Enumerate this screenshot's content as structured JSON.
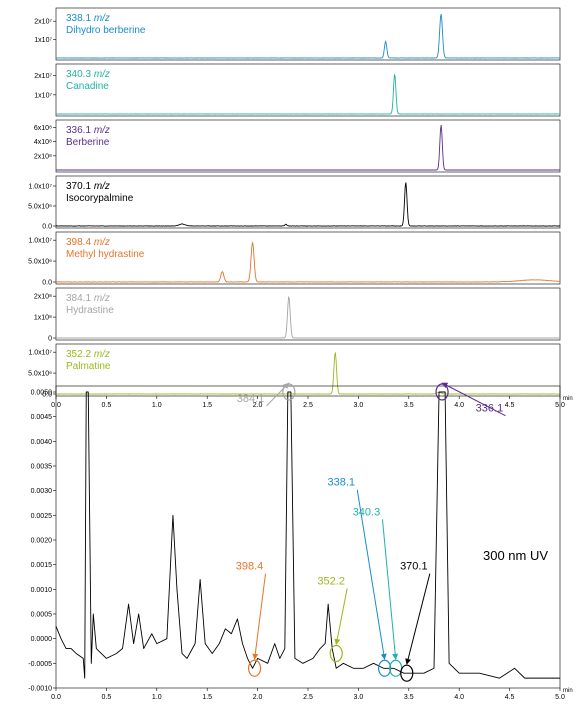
{
  "chart_data": [
    {
      "type": "line",
      "panel": "ion-traces",
      "x_unit": "min",
      "xlim": [
        0.0,
        5.0
      ],
      "x_ticks": [
        "0.0",
        "0.5",
        "1.0",
        "1.5",
        "2.0",
        "2.5",
        "3.0",
        "3.5",
        "4.0",
        "4.5",
        "5.0"
      ],
      "series": [
        {
          "name": "Dihydro berberine",
          "mz": "338.1",
          "unit": "m/z",
          "color": "#1a8ccc",
          "y_ticks": [
            {
              "value": 20000000,
              "label": "2x10⁷"
            },
            {
              "value": 10000000,
              "label": "1x10⁷"
            }
          ],
          "ylim": [
            0,
            25000000
          ],
          "noise": 0.012,
          "peaks": [
            {
              "x": 3.27,
              "height": 9000000,
              "width": 0.012
            },
            {
              "x": 3.82,
              "height": 24000000,
              "width": 0.014
            }
          ]
        },
        {
          "name": "Canadine",
          "mz": "340.3",
          "unit": "m/z",
          "color": "#1fb3a3",
          "y_ticks": [
            {
              "value": 20000000,
              "label": "2x10⁷"
            },
            {
              "value": 10000000,
              "label": "1x10⁷"
            }
          ],
          "ylim": [
            0,
            24000000
          ],
          "noise": 0.01,
          "peaks": [
            {
              "x": 3.36,
              "height": 21000000,
              "width": 0.012
            }
          ]
        },
        {
          "name": "Berberine",
          "mz": "336.1",
          "unit": "m/z",
          "color": "#5b2d90",
          "y_ticks": [
            {
              "value": 600000000,
              "label": "6x10⁸"
            },
            {
              "value": 400000000,
              "label": "4x10⁸"
            },
            {
              "value": 200000000,
              "label": "2x10⁸"
            }
          ],
          "ylim": [
            0,
            650000000
          ],
          "noise": 0.0,
          "peaks": [
            {
              "x": 3.82,
              "height": 640000000,
              "width": 0.012
            }
          ]
        },
        {
          "name": "Isocorypalmine",
          "mz": "370.1",
          "unit": "m/z",
          "color": "#000000",
          "y_ticks": [
            {
              "value": 10000000,
              "label": "1.0x10⁷"
            },
            {
              "value": 5000000,
              "label": "5.0x10⁶"
            },
            {
              "value": 0,
              "label": "0.0"
            }
          ],
          "ylim": [
            0,
            11500000
          ],
          "noise": 0.03,
          "peaks": [
            {
              "x": 1.25,
              "height": 500000,
              "width": 0.03
            },
            {
              "x": 2.28,
              "height": 450000,
              "width": 0.01
            },
            {
              "x": 3.47,
              "height": 11000000,
              "width": 0.012
            }
          ]
        },
        {
          "name": "Methyl hydrastine",
          "mz": "398.4",
          "unit": "m/z",
          "color": "#e8732a",
          "y_ticks": [
            {
              "value": 10000000,
              "label": "1.0x10⁷"
            },
            {
              "value": 5000000,
              "label": "5.0x10⁶"
            },
            {
              "value": 0,
              "label": "0.0"
            }
          ],
          "ylim": [
            0,
            11000000
          ],
          "noise": 0.03,
          "peaks": [
            {
              "x": 1.65,
              "height": 2500000,
              "width": 0.015
            },
            {
              "x": 1.95,
              "height": 9500000,
              "width": 0.015
            },
            {
              "x": 4.75,
              "height": 500000,
              "width": 0.15
            }
          ]
        },
        {
          "name": "Hydrastine",
          "mz": "384.1",
          "unit": "m/z",
          "color": "#a5a5a5",
          "y_ticks": [
            {
              "value": 200000000,
              "label": "2x10⁸"
            },
            {
              "value": 100000000,
              "label": "1x10⁸"
            },
            {
              "value": 0,
              "label": "0"
            }
          ],
          "ylim": [
            0,
            220000000
          ],
          "noise": 0.0,
          "peaks": [
            {
              "x": 2.31,
              "height": 200000000,
              "width": 0.013
            }
          ]
        },
        {
          "name": "Palmatine",
          "mz": "352.2",
          "unit": "m/z",
          "color": "#9ab81e",
          "y_ticks": [
            {
              "value": 10000000,
              "label": "1.0x10⁷"
            },
            {
              "value": 5000000,
              "label": "5.0x10⁶"
            },
            {
              "value": 0,
              "label": "0.0"
            }
          ],
          "ylim": [
            0,
            11000000
          ],
          "noise": 0.02,
          "peaks": [
            {
              "x": 2.77,
              "height": 10000000,
              "width": 0.013
            },
            {
              "x": 3.8,
              "height": 400000,
              "width": 0.02
            }
          ]
        }
      ]
    },
    {
      "type": "line",
      "panel": "uv-trace",
      "annotation": "300 nm UV",
      "x_unit": "min",
      "xlim": [
        0.0,
        5.0
      ],
      "x_ticks": [
        "0.0",
        "0.5",
        "1.0",
        "1.5",
        "2.0",
        "2.5",
        "3.0",
        "3.5",
        "4.0",
        "4.5",
        "5.0"
      ],
      "ylim": [
        -0.001,
        0.005
      ],
      "y_ticks": [
        "0.0050",
        "0.0045",
        "0.0040",
        "0.0035",
        "0.0030",
        "0.0025",
        "0.0020",
        "0.0015",
        "0.0010",
        "0.0005",
        "0.0000",
        "-0.0005",
        "-0.0010"
      ],
      "series": [
        {
          "name": "",
          "color": "#000000",
          "points": [
            [
              0.0,
              0.00025
            ],
            [
              0.05,
              0.0
            ],
            [
              0.1,
              -0.0002
            ],
            [
              0.15,
              -0.0002
            ],
            [
              0.2,
              -0.0003
            ],
            [
              0.27,
              -0.0004
            ],
            [
              0.285,
              -0.0008
            ],
            [
              0.3,
              0.005
            ],
            [
              0.32,
              0.005
            ],
            [
              0.35,
              -0.0005
            ],
            [
              0.37,
              0.0005
            ],
            [
              0.4,
              -0.0002
            ],
            [
              0.5,
              -0.0004
            ],
            [
              0.6,
              -0.0003
            ],
            [
              0.66,
              -0.0002
            ],
            [
              0.72,
              0.0007
            ],
            [
              0.77,
              -0.0001
            ],
            [
              0.82,
              0.0005
            ],
            [
              0.87,
              -0.0002
            ],
            [
              0.95,
              0.0001
            ],
            [
              1.0,
              -0.0001
            ],
            [
              1.1,
              0.0
            ],
            [
              1.16,
              0.0025
            ],
            [
              1.2,
              0.001
            ],
            [
              1.25,
              -0.0003
            ],
            [
              1.3,
              -0.0004
            ],
            [
              1.38,
              -0.0001
            ],
            [
              1.43,
              0.0012
            ],
            [
              1.48,
              -0.0001
            ],
            [
              1.55,
              -0.0003
            ],
            [
              1.62,
              -0.0001
            ],
            [
              1.68,
              0.0002
            ],
            [
              1.74,
              0.0001
            ],
            [
              1.8,
              0.0004
            ],
            [
              1.85,
              -0.0001
            ],
            [
              1.9,
              -0.0004
            ],
            [
              1.95,
              -0.0006
            ],
            [
              2.0,
              -0.0004
            ],
            [
              2.1,
              -0.0005
            ],
            [
              2.17,
              -0.0001
            ],
            [
              2.22,
              -0.0004
            ],
            [
              2.27,
              -0.0002
            ],
            [
              2.3,
              0.005
            ],
            [
              2.33,
              0.005
            ],
            [
              2.37,
              -0.0004
            ],
            [
              2.45,
              -0.0005
            ],
            [
              2.55,
              -0.0004
            ],
            [
              2.62,
              -0.0002
            ],
            [
              2.67,
              -0.0001
            ],
            [
              2.7,
              0.0007
            ],
            [
              2.74,
              -0.0002
            ],
            [
              2.78,
              -0.0006
            ],
            [
              2.85,
              -0.0005
            ],
            [
              2.95,
              -0.0006
            ],
            [
              3.05,
              -0.0006
            ],
            [
              3.15,
              -0.0005
            ],
            [
              3.25,
              -0.0006
            ],
            [
              3.35,
              -0.0006
            ],
            [
              3.45,
              -0.0007
            ],
            [
              3.55,
              -0.0007
            ],
            [
              3.65,
              -0.0007
            ],
            [
              3.75,
              -0.0006
            ],
            [
              3.8,
              0.005
            ],
            [
              3.86,
              0.005
            ],
            [
              3.9,
              -0.0005
            ],
            [
              4.0,
              -0.0007
            ],
            [
              4.2,
              -0.0007
            ],
            [
              4.4,
              -0.0008
            ],
            [
              4.55,
              -0.0006
            ],
            [
              4.65,
              -0.0008
            ],
            [
              4.8,
              -0.0008
            ],
            [
              5.0,
              -0.0008
            ]
          ]
        }
      ],
      "annotations": [
        {
          "label": "384.1",
          "color": "#a5a5a5",
          "x": 2.31,
          "y": 0.005,
          "text_x": 1.93,
          "text_y": 0.0048
        },
        {
          "label": "336.1",
          "color": "#5b2d90",
          "x": 3.83,
          "y": 0.005,
          "text_x": 4.3,
          "text_y": 0.0046
        },
        {
          "label": "338.1",
          "color": "#1a8ccc",
          "x": 3.26,
          "y": -0.0006,
          "text_x": 2.83,
          "text_y": 0.0031
        },
        {
          "label": "340.3",
          "color": "#1fb3a3",
          "x": 3.37,
          "y": -0.0006,
          "text_x": 3.08,
          "text_y": 0.0025
        },
        {
          "label": "370.1",
          "color": "#000000",
          "x": 3.48,
          "y": -0.0007,
          "text_x": 3.55,
          "text_y": 0.0014
        },
        {
          "label": "398.4",
          "color": "#e8732a",
          "x": 1.97,
          "y": -0.0006,
          "text_x": 1.92,
          "text_y": 0.0014
        },
        {
          "label": "352.2",
          "color": "#9ab81e",
          "x": 2.78,
          "y": -0.0003,
          "text_x": 2.73,
          "text_y": 0.0011
        }
      ]
    }
  ]
}
